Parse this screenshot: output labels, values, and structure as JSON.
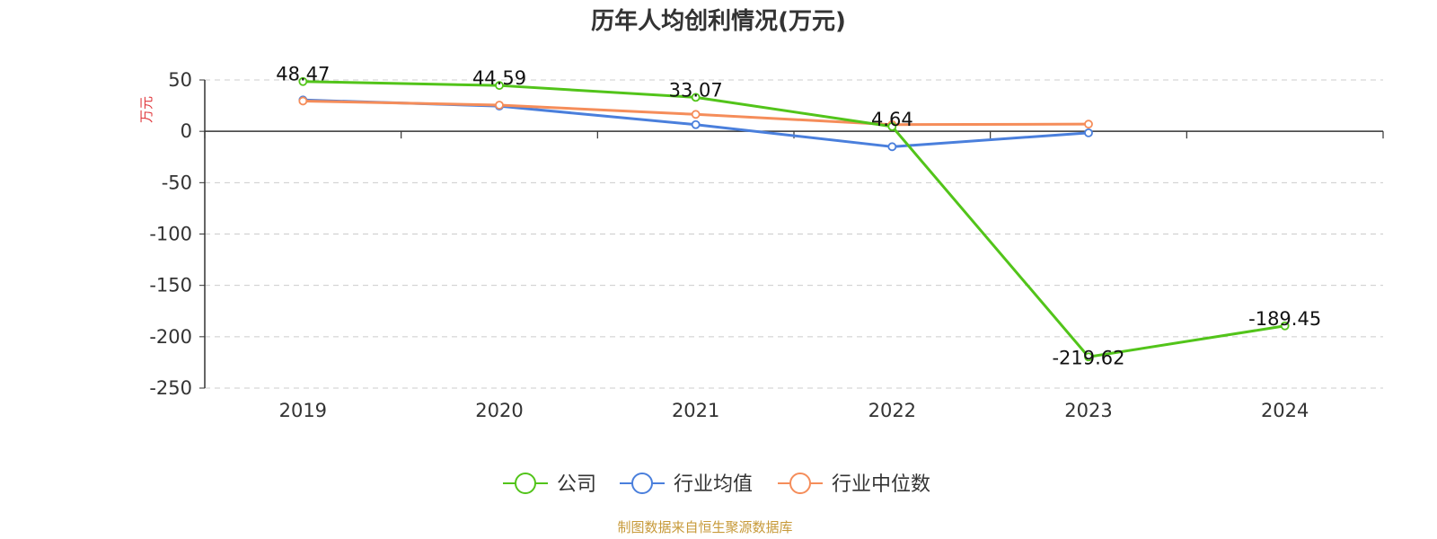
{
  "chart_data": {
    "type": "line",
    "title": "历年人均创利情况(万元)",
    "ylabel": "万元",
    "categories": [
      "2019",
      "2020",
      "2021",
      "2022",
      "2023",
      "2024"
    ],
    "ylim": [
      -250,
      50
    ],
    "yticks": [
      50,
      0,
      -50,
      -100,
      -150,
      -200,
      -250
    ],
    "grid": true,
    "legend_position": "bottom",
    "series": [
      {
        "name": "公司",
        "color": "#52c41a",
        "values": [
          48.47,
          44.59,
          33.07,
          4.64,
          -219.62,
          -189.45
        ],
        "labels": [
          "48.47",
          "44.59",
          "33.07",
          "4.64",
          "-219.62",
          "-189.45"
        ]
      },
      {
        "name": "行业均值",
        "color": "#4a7fdc",
        "values": [
          30.5,
          24.5,
          6.5,
          -15,
          -1.5,
          null
        ]
      },
      {
        "name": "行业中位数",
        "color": "#f58d5a",
        "values": [
          29.5,
          25.5,
          16.5,
          6.5,
          7,
          null
        ]
      }
    ]
  },
  "source": "制图数据来自恒生聚源数据库"
}
